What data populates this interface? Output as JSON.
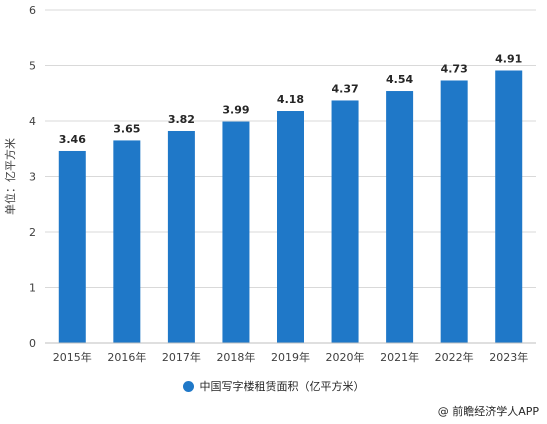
{
  "chart_data": {
    "type": "bar",
    "categories": [
      "2015年",
      "2016年",
      "2017年",
      "2018年",
      "2019年",
      "2020年",
      "2021年",
      "2022年",
      "2023年"
    ],
    "series": [
      {
        "name": "中国写字楼租赁面积（亿平方米）",
        "values": [
          3.46,
          3.65,
          3.82,
          3.99,
          4.18,
          4.37,
          4.54,
          4.73,
          4.91
        ]
      }
    ],
    "value_labels": [
      "3.46",
      "3.65",
      "3.82",
      "3.99",
      "4.18",
      "4.37",
      "4.54",
      "4.73",
      "4.91"
    ],
    "ylabel": "单位：亿平方米",
    "xlabel": "",
    "ylim": [
      0,
      6
    ],
    "yticks": [
      "0",
      "1",
      "2",
      "3",
      "4",
      "5",
      "6"
    ],
    "grid": true,
    "legend_position": "bottom",
    "bar_color": "#1f78c8"
  },
  "source_text": "@ 前瞻经济学人APP"
}
